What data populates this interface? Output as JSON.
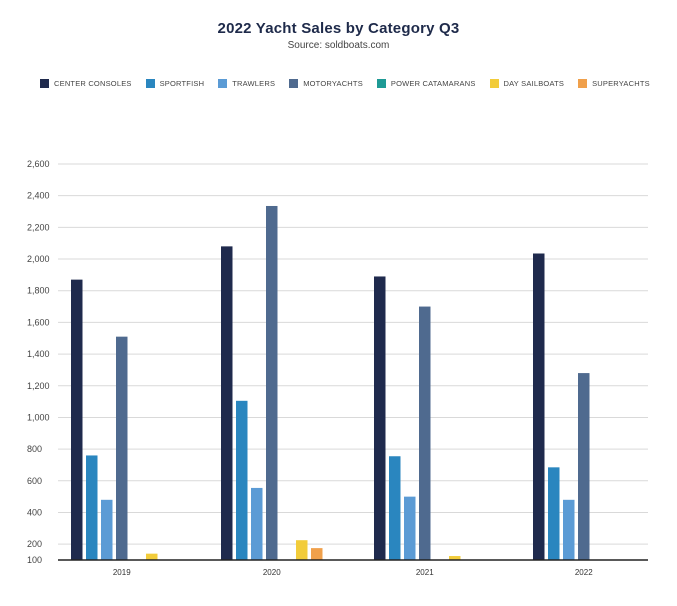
{
  "chart_data": {
    "type": "bar",
    "title": "2022 Yacht Sales by Category Q3",
    "subtitle": "Source: soldboats.com",
    "categories": [
      "2019",
      "2020",
      "2021",
      "2022"
    ],
    "ylim": [
      100,
      2600
    ],
    "yticks": [
      100,
      200,
      400,
      600,
      800,
      1000,
      1200,
      1400,
      1600,
      1800,
      2000,
      2200,
      2400,
      2600
    ],
    "ytick_labels": [
      "100",
      "200",
      "400",
      "600",
      "800",
      "1,000",
      "1,200",
      "1,400",
      "1,600",
      "1,800",
      "2,000",
      "2,200",
      "2,400",
      "2,600"
    ],
    "grid": true,
    "legend_position": "top",
    "series": [
      {
        "name": "CENTER CONSOLES",
        "color": "#1f2a4d",
        "values": [
          1870,
          2080,
          1890,
          2035
        ]
      },
      {
        "name": "SPORTFISH",
        "color": "#2a86bf",
        "values": [
          760,
          1105,
          755,
          685
        ]
      },
      {
        "name": "TRAWLERS",
        "color": "#5b9bd5",
        "values": [
          480,
          555,
          500,
          480
        ]
      },
      {
        "name": "MOTORYACHTS",
        "color": "#4f6a8f",
        "values": [
          1510,
          2335,
          1700,
          1280
        ]
      },
      {
        "name": "POWER CATAMARANS",
        "color": "#1e9a95",
        "values": [
          45,
          25,
          8,
          10
        ]
      },
      {
        "name": "DAY SAILBOATS",
        "color": "#f2cc3a",
        "values": [
          140,
          225,
          125,
          90
        ]
      },
      {
        "name": "SUPERYACHTS",
        "color": "#f0a04b",
        "values": [
          28,
          175,
          70,
          35
        ]
      }
    ]
  }
}
